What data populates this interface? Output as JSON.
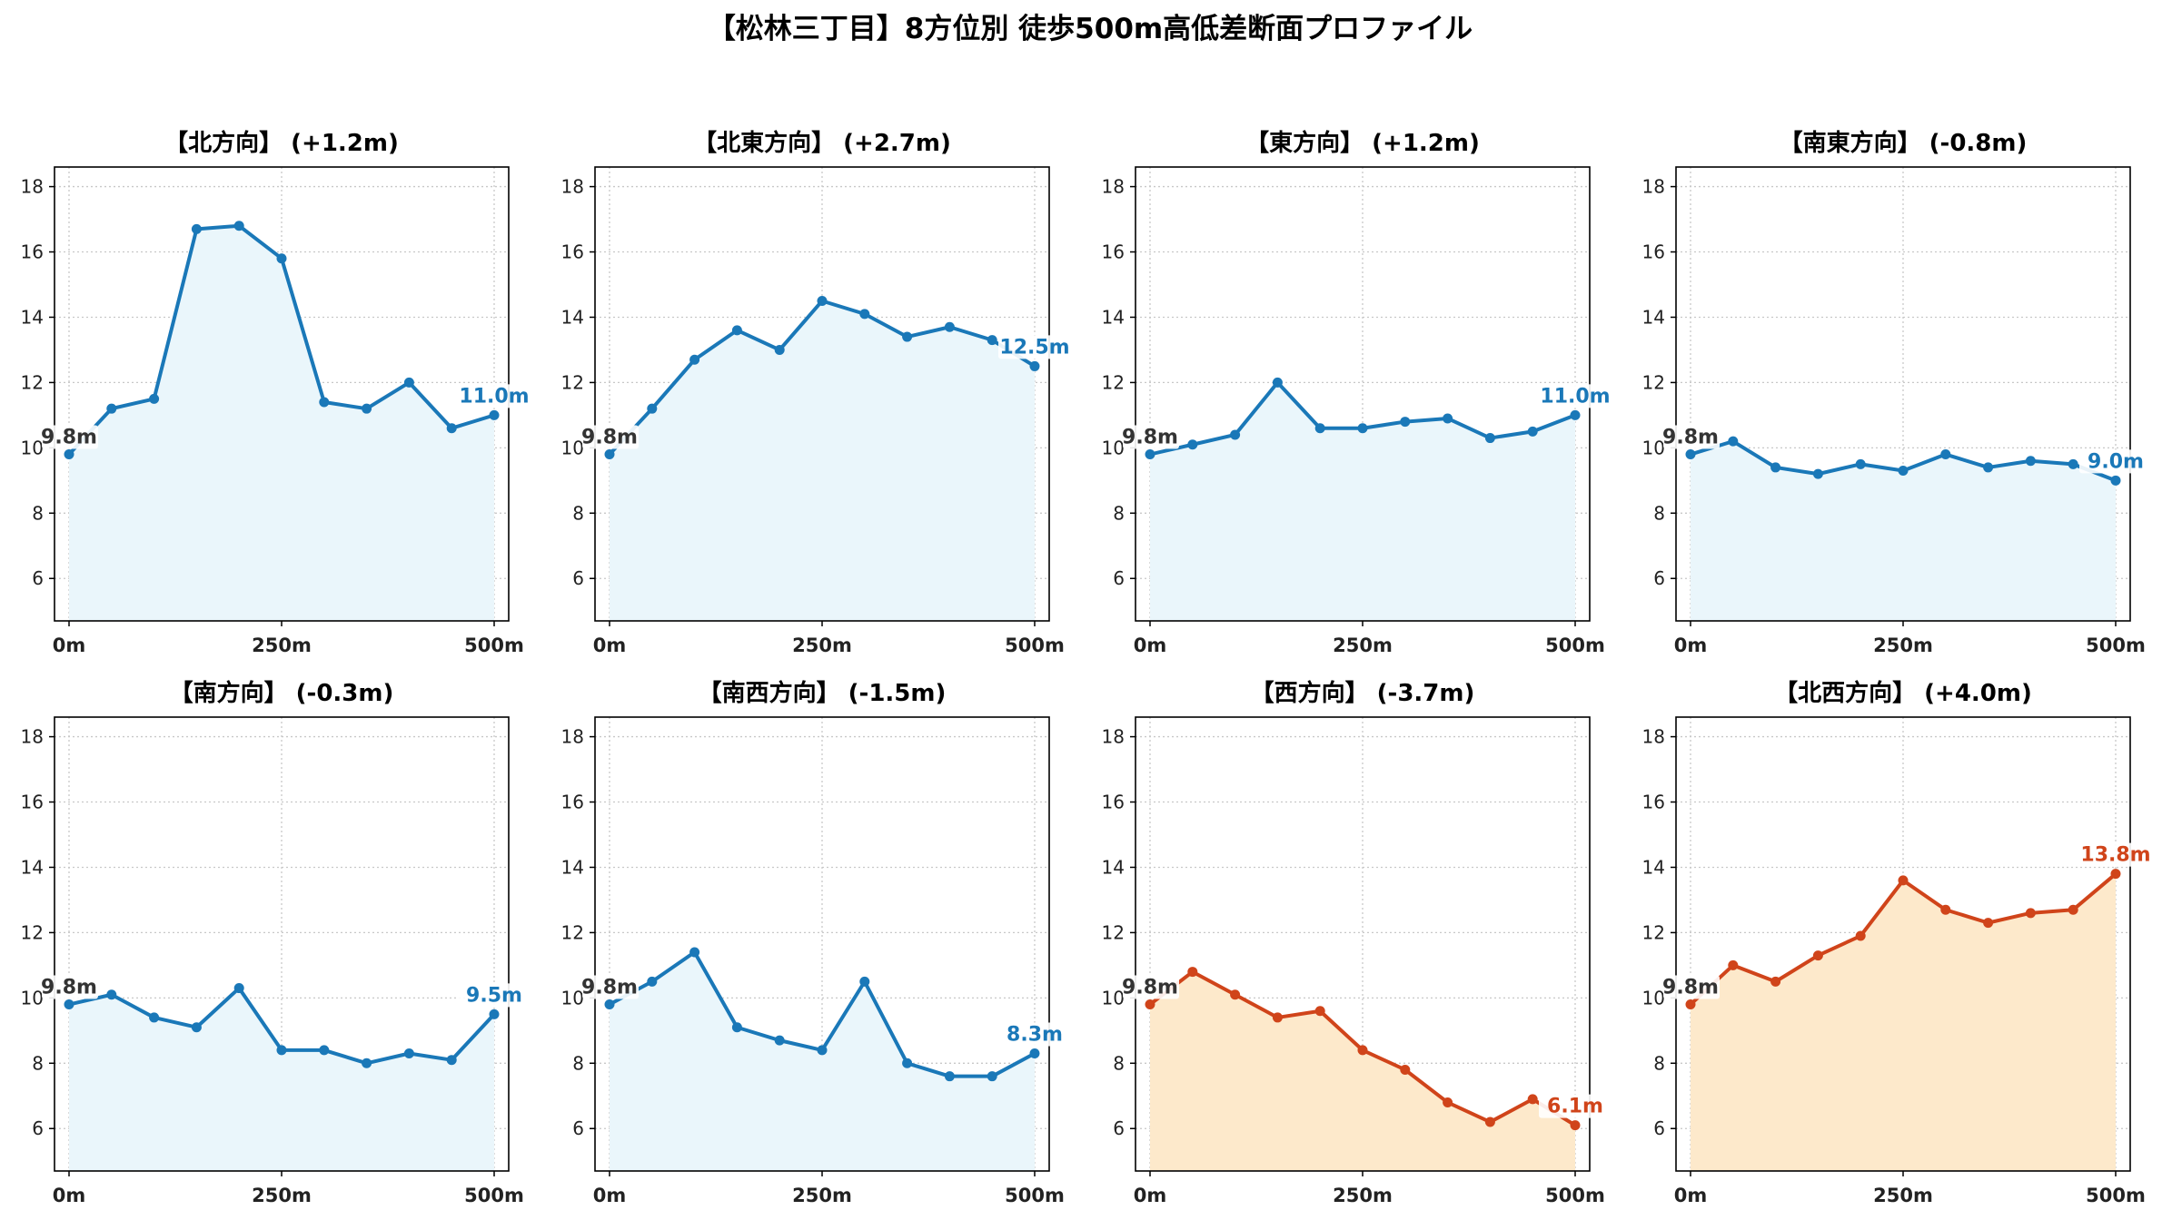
{
  "title": "【松林三丁目】8方位別 徒歩500m高低差断面プロファイル",
  "colors": {
    "up_line": "#1a78b8",
    "up_fill": "#eaf6fb",
    "down_line": "#d0441a",
    "down_fill": "#fde9cb",
    "start_label": "#333333",
    "grid": "#c8c8c8",
    "axis": "#000000"
  },
  "chart_data": [
    {
      "type": "line",
      "title": "【北方向】 (+1.2m)",
      "x": [
        0,
        50,
        100,
        150,
        200,
        250,
        300,
        350,
        400,
        450,
        500
      ],
      "y": [
        9.8,
        11.2,
        11.5,
        16.7,
        16.8,
        15.8,
        11.4,
        11.2,
        12.0,
        10.6,
        11.0
      ],
      "xticks": [
        "0m",
        "250m",
        "500m"
      ],
      "yticks": [
        6,
        8,
        10,
        12,
        14,
        16,
        18
      ],
      "ylim": [
        4.7,
        18.6
      ],
      "start_label": "9.8m",
      "end_label": "11.0m",
      "color": "blue",
      "grid": true
    },
    {
      "type": "line",
      "title": "【北東方向】 (+2.7m)",
      "x": [
        0,
        50,
        100,
        150,
        200,
        250,
        300,
        350,
        400,
        450,
        500
      ],
      "y": [
        9.8,
        11.2,
        12.7,
        13.6,
        13.0,
        14.5,
        14.1,
        13.4,
        13.7,
        13.3,
        12.5
      ],
      "xticks": [
        "0m",
        "250m",
        "500m"
      ],
      "yticks": [
        6,
        8,
        10,
        12,
        14,
        16,
        18
      ],
      "ylim": [
        4.7,
        18.6
      ],
      "start_label": "9.8m",
      "end_label": "12.5m",
      "color": "blue",
      "grid": true
    },
    {
      "type": "line",
      "title": "【東方向】 (+1.2m)",
      "x": [
        0,
        50,
        100,
        150,
        200,
        250,
        300,
        350,
        400,
        450,
        500
      ],
      "y": [
        9.8,
        10.1,
        10.4,
        12.0,
        10.6,
        10.6,
        10.8,
        10.9,
        10.3,
        10.5,
        11.0
      ],
      "xticks": [
        "0m",
        "250m",
        "500m"
      ],
      "yticks": [
        6,
        8,
        10,
        12,
        14,
        16,
        18
      ],
      "ylim": [
        4.7,
        18.6
      ],
      "start_label": "9.8m",
      "end_label": "11.0m",
      "color": "blue",
      "grid": true
    },
    {
      "type": "line",
      "title": "【南東方向】 (-0.8m)",
      "x": [
        0,
        50,
        100,
        150,
        200,
        250,
        300,
        350,
        400,
        450,
        500
      ],
      "y": [
        9.8,
        10.2,
        9.4,
        9.2,
        9.5,
        9.3,
        9.8,
        9.4,
        9.6,
        9.5,
        9.0
      ],
      "xticks": [
        "0m",
        "250m",
        "500m"
      ],
      "yticks": [
        6,
        8,
        10,
        12,
        14,
        16,
        18
      ],
      "ylim": [
        4.7,
        18.6
      ],
      "start_label": "9.8m",
      "end_label": "9.0m",
      "color": "blue",
      "grid": true
    },
    {
      "type": "line",
      "title": "【南方向】 (-0.3m)",
      "x": [
        0,
        50,
        100,
        150,
        200,
        250,
        300,
        350,
        400,
        450,
        500
      ],
      "y": [
        9.8,
        10.1,
        9.4,
        9.1,
        10.3,
        8.4,
        8.4,
        8.0,
        8.3,
        8.1,
        9.5
      ],
      "xticks": [
        "0m",
        "250m",
        "500m"
      ],
      "yticks": [
        6,
        8,
        10,
        12,
        14,
        16,
        18
      ],
      "ylim": [
        4.7,
        18.6
      ],
      "start_label": "9.8m",
      "end_label": "9.5m",
      "color": "blue",
      "grid": true
    },
    {
      "type": "line",
      "title": "【南西方向】 (-1.5m)",
      "x": [
        0,
        50,
        100,
        150,
        200,
        250,
        300,
        350,
        400,
        450,
        500
      ],
      "y": [
        9.8,
        10.5,
        11.4,
        9.1,
        8.7,
        8.4,
        10.5,
        8.0,
        7.6,
        7.6,
        8.3
      ],
      "xticks": [
        "0m",
        "250m",
        "500m"
      ],
      "yticks": [
        6,
        8,
        10,
        12,
        14,
        16,
        18
      ],
      "ylim": [
        4.7,
        18.6
      ],
      "start_label": "9.8m",
      "end_label": "8.3m",
      "color": "blue",
      "grid": true
    },
    {
      "type": "line",
      "title": "【西方向】 (-3.7m)",
      "x": [
        0,
        50,
        100,
        150,
        200,
        250,
        300,
        350,
        400,
        450,
        500
      ],
      "y": [
        9.8,
        10.8,
        10.1,
        9.4,
        9.6,
        8.4,
        7.8,
        6.8,
        6.2,
        6.9,
        6.1
      ],
      "xticks": [
        "0m",
        "250m",
        "500m"
      ],
      "yticks": [
        6,
        8,
        10,
        12,
        14,
        16,
        18
      ],
      "ylim": [
        4.7,
        18.6
      ],
      "start_label": "9.8m",
      "end_label": "6.1m",
      "color": "orange",
      "grid": true
    },
    {
      "type": "line",
      "title": "【北西方向】 (+4.0m)",
      "x": [
        0,
        50,
        100,
        150,
        200,
        250,
        300,
        350,
        400,
        450,
        500
      ],
      "y": [
        9.8,
        11.0,
        10.5,
        11.3,
        11.9,
        13.6,
        12.7,
        12.3,
        12.6,
        12.7,
        13.8
      ],
      "xticks": [
        "0m",
        "250m",
        "500m"
      ],
      "yticks": [
        6,
        8,
        10,
        12,
        14,
        16,
        18
      ],
      "ylim": [
        4.7,
        18.6
      ],
      "start_label": "9.8m",
      "end_label": "13.8m",
      "color": "orange",
      "grid": true
    }
  ]
}
